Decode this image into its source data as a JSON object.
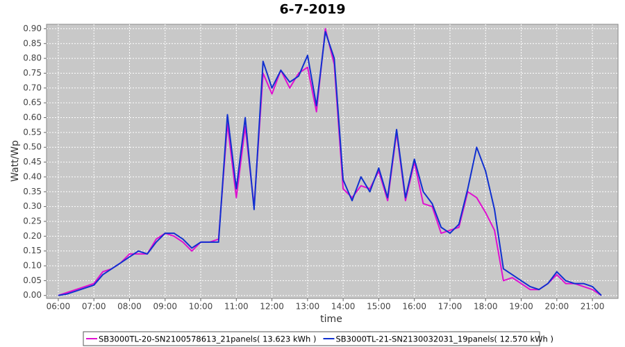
{
  "chart_data": {
    "type": "line",
    "title": "6-7-2019",
    "x_label": "time",
    "y_label": "Watt/Wp",
    "x": [
      6,
      6.25,
      6.5,
      6.75,
      7,
      7.25,
      7.5,
      7.75,
      8,
      8.25,
      8.5,
      8.75,
      9,
      9.25,
      9.5,
      9.75,
      10,
      10.25,
      10.5,
      10.75,
      11,
      11.25,
      11.5,
      11.75,
      12,
      12.25,
      12.5,
      12.75,
      13,
      13.25,
      13.5,
      13.75,
      14,
      14.25,
      14.5,
      14.75,
      15,
      15.25,
      15.5,
      15.75,
      16,
      16.25,
      16.5,
      16.75,
      17,
      17.25,
      17.5,
      17.75,
      18,
      18.25,
      18.5,
      18.75,
      19,
      19.25,
      19.5,
      19.75,
      20,
      20.25,
      20.5,
      20.75,
      21,
      21.25
    ],
    "series": [
      {
        "name": "SB3000TL-20-SN2100578613_21panels( 13.623 kWh )",
        "color": "#e010d0",
        "values": [
          0,
          0.01,
          0.02,
          0.03,
          0.04,
          0.08,
          0.09,
          0.11,
          0.14,
          0.14,
          0.14,
          0.19,
          0.21,
          0.2,
          0.18,
          0.15,
          0.18,
          0.18,
          0.19,
          0.58,
          0.33,
          0.57,
          0.3,
          0.75,
          0.68,
          0.76,
          0.7,
          0.75,
          0.77,
          0.62,
          0.9,
          0.78,
          0.36,
          0.33,
          0.37,
          0.36,
          0.42,
          0.32,
          0.55,
          0.32,
          0.45,
          0.31,
          0.3,
          0.21,
          0.22,
          0.23,
          0.35,
          0.33,
          0.28,
          0.22,
          0.05,
          0.06,
          0.04,
          0.02,
          0.02,
          0.04,
          0.07,
          0.04,
          0.04,
          0.03,
          0.02,
          0
        ]
      },
      {
        "name": "SB3000TL-21-SN2130032031_19panels( 12.570 kWh )",
        "color": "#1030d0",
        "values": [
          0,
          0.005,
          0.015,
          0.025,
          0.035,
          0.07,
          0.09,
          0.11,
          0.13,
          0.15,
          0.14,
          0.18,
          0.21,
          0.21,
          0.19,
          0.16,
          0.18,
          0.18,
          0.18,
          0.61,
          0.36,
          0.6,
          0.29,
          0.79,
          0.7,
          0.76,
          0.72,
          0.74,
          0.81,
          0.64,
          0.89,
          0.8,
          0.39,
          0.32,
          0.4,
          0.35,
          0.43,
          0.33,
          0.56,
          0.33,
          0.46,
          0.35,
          0.31,
          0.23,
          0.21,
          0.24,
          0.36,
          0.5,
          0.42,
          0.29,
          0.09,
          0.07,
          0.05,
          0.03,
          0.02,
          0.04,
          0.08,
          0.05,
          0.04,
          0.04,
          0.03,
          0
        ]
      }
    ],
    "xlim": [
      5.67,
      21.72
    ],
    "ylim": [
      -0.01,
      0.915
    ],
    "xticks": [
      {
        "value": 6,
        "label": "06:00"
      },
      {
        "value": 7,
        "label": "07:00"
      },
      {
        "value": 8,
        "label": "08:00"
      },
      {
        "value": 9,
        "label": "09:00"
      },
      {
        "value": 10,
        "label": "10:00"
      },
      {
        "value": 11,
        "label": "11:00"
      },
      {
        "value": 12,
        "label": "12:00"
      },
      {
        "value": 13,
        "label": "13:00"
      },
      {
        "value": 14,
        "label": "14:00"
      },
      {
        "value": 15,
        "label": "15:00"
      },
      {
        "value": 16,
        "label": "16:00"
      },
      {
        "value": 17,
        "label": "17:00"
      },
      {
        "value": 18,
        "label": "18:00"
      },
      {
        "value": 19,
        "label": "19:00"
      },
      {
        "value": 20,
        "label": "20:00"
      },
      {
        "value": 21,
        "label": "21:00"
      }
    ],
    "yticks": [
      {
        "value": 0,
        "label": "0.00"
      },
      {
        "value": 0.05,
        "label": "0.05"
      },
      {
        "value": 0.1,
        "label": "0.10"
      },
      {
        "value": 0.15,
        "label": "0.15"
      },
      {
        "value": 0.2,
        "label": "0.20"
      },
      {
        "value": 0.25,
        "label": "0.25"
      },
      {
        "value": 0.3,
        "label": "0.30"
      },
      {
        "value": 0.35,
        "label": "0.35"
      },
      {
        "value": 0.4,
        "label": "0.40"
      },
      {
        "value": 0.45,
        "label": "0.45"
      },
      {
        "value": 0.5,
        "label": "0.50"
      },
      {
        "value": 0.55,
        "label": "0.55"
      },
      {
        "value": 0.6,
        "label": "0.60"
      },
      {
        "value": 0.65,
        "label": "0.65"
      },
      {
        "value": 0.7,
        "label": "0.70"
      },
      {
        "value": 0.75,
        "label": "0.75"
      },
      {
        "value": 0.8,
        "label": "0.80"
      },
      {
        "value": 0.85,
        "label": "0.85"
      },
      {
        "value": 0.9,
        "label": "0.90"
      }
    ],
    "grid": true
  }
}
